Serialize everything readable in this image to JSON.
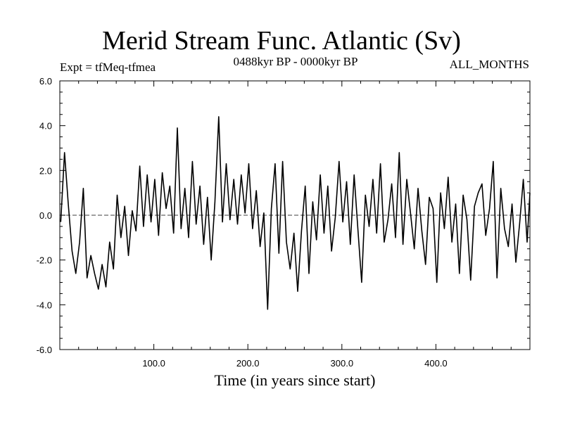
{
  "chart_data": {
    "type": "line",
    "title": "Merid Stream Func. Atlantic (Sv)",
    "subtitle_left": "Expt = tfMeq-tfmea",
    "subtitle_center": "0488kyr BP - 0000kyr BP",
    "subtitle_right": "ALL_MONTHS",
    "xlabel": "Time (in years since start)",
    "ylabel": "",
    "xlim": [
      0,
      500
    ],
    "ylim": [
      -6.0,
      6.0
    ],
    "xticks": [
      100,
      200,
      300,
      400
    ],
    "xtick_labels": [
      "100.0",
      "200.0",
      "300.0",
      "400.0"
    ],
    "yticks": [
      -6,
      -4,
      -2,
      0,
      2,
      4,
      6
    ],
    "ytick_labels": [
      "-6.0",
      "-4.0",
      "-2.0",
      "0.0",
      "2.0",
      "4.0",
      "6.0"
    ],
    "reference_line": 0.0,
    "series": [
      {
        "name": "Merid Stream Func. Atlantic",
        "x": [
          1,
          5,
          9,
          13,
          17,
          21,
          25,
          29,
          33,
          37,
          41,
          45,
          49,
          53,
          57,
          61,
          65,
          69,
          73,
          77,
          81,
          85,
          89,
          93,
          97,
          101,
          105,
          109,
          113,
          117,
          121,
          125,
          129,
          133,
          137,
          141,
          145,
          149,
          153,
          157,
          161,
          165,
          169,
          173,
          177,
          181,
          185,
          189,
          193,
          197,
          201,
          205,
          209,
          213,
          217,
          221,
          225,
          229,
          233,
          237,
          241,
          245,
          249,
          253,
          257,
          261,
          265,
          269,
          273,
          277,
          281,
          285,
          289,
          293,
          297,
          301,
          305,
          309,
          313,
          317,
          321,
          325,
          329,
          333,
          337,
          341,
          345,
          349,
          353,
          357,
          361,
          365,
          369,
          373,
          377,
          381,
          385,
          389,
          393,
          397,
          401,
          405,
          409,
          413,
          417,
          421,
          425,
          429,
          433,
          437,
          441,
          445,
          449,
          453,
          457,
          461,
          465,
          469,
          473,
          477,
          481,
          485,
          489,
          493,
          497,
          500
        ],
        "y": [
          -0.3,
          2.8,
          0.5,
          -1.6,
          -2.6,
          -1.2,
          1.2,
          -2.8,
          -1.8,
          -2.6,
          -3.3,
          -2.2,
          -3.2,
          -1.2,
          -2.4,
          0.9,
          -1.0,
          0.4,
          -1.8,
          0.2,
          -0.7,
          2.2,
          -0.5,
          1.8,
          -0.3,
          1.6,
          -0.9,
          1.9,
          0.3,
          1.3,
          -0.8,
          3.9,
          -0.6,
          1.2,
          -1.0,
          2.4,
          -0.4,
          1.3,
          -1.3,
          0.8,
          -2.0,
          0.6,
          4.4,
          -0.3,
          2.3,
          -0.2,
          1.6,
          -0.4,
          1.8,
          0.1,
          2.3,
          -0.6,
          1.1,
          -1.4,
          0.1,
          -4.2,
          0.3,
          2.3,
          -1.7,
          2.4,
          -1.2,
          -2.4,
          -0.8,
          -3.4,
          -0.7,
          1.3,
          -2.6,
          0.6,
          -1.1,
          1.8,
          -0.8,
          1.3,
          -1.6,
          -0.1,
          2.4,
          -0.3,
          1.5,
          -1.3,
          1.8,
          -0.6,
          -3.0,
          0.9,
          -0.5,
          1.6,
          -0.8,
          2.3,
          -1.2,
          -0.2,
          1.4,
          -1.0,
          2.8,
          -1.3,
          1.6,
          0.1,
          -1.5,
          1.2,
          -0.7,
          -2.2,
          0.8,
          0.3,
          -3.0,
          1.0,
          -0.6,
          1.7,
          -1.2,
          0.5,
          -2.6,
          0.9,
          -0.2,
          -2.9,
          0.4,
          1.0,
          1.4,
          -0.9,
          0.3,
          2.4,
          -2.8,
          1.2,
          -0.6,
          -1.4,
          0.5,
          -2.1,
          -0.4,
          1.6,
          -1.2,
          1.0
        ]
      }
    ]
  }
}
